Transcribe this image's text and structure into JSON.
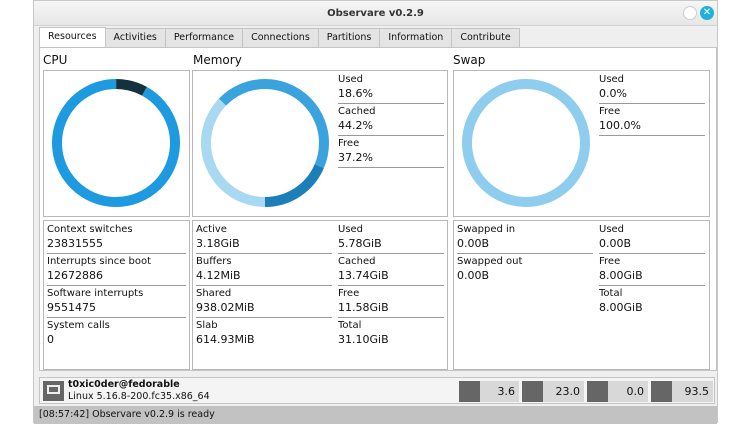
{
  "window": {
    "title": "Observare v0.2.9"
  },
  "tabs": [
    "Resources",
    "Activities",
    "Performance",
    "Connections",
    "Partitions",
    "Information",
    "Contribute"
  ],
  "cpu": {
    "title": "CPU",
    "usage_percent": 8,
    "stats": [
      {
        "label": "Context switches",
        "value": "23831555"
      },
      {
        "label": "Interrupts since boot",
        "value": "12672886"
      },
      {
        "label": "Software interrupts",
        "value": "9551475"
      },
      {
        "label": "System calls",
        "value": "0"
      }
    ]
  },
  "memory": {
    "title": "Memory",
    "legend": [
      {
        "label": "Used",
        "value": "18.6%"
      },
      {
        "label": "Cached",
        "value": "44.2%"
      },
      {
        "label": "Free",
        "value": "37.2%"
      }
    ],
    "left": [
      {
        "label": "Active",
        "value": "3.18GiB"
      },
      {
        "label": "Buffers",
        "value": "4.12MiB"
      },
      {
        "label": "Shared",
        "value": "938.02MiB"
      },
      {
        "label": "Slab",
        "value": "614.93MiB"
      }
    ],
    "right": [
      {
        "label": "Used",
        "value": "5.78GiB"
      },
      {
        "label": "Cached",
        "value": "13.74GiB"
      },
      {
        "label": "Free",
        "value": "11.58GiB"
      },
      {
        "label": "Total",
        "value": "31.10GiB"
      }
    ]
  },
  "swap": {
    "title": "Swap",
    "legend": [
      {
        "label": "Used",
        "value": "0.0%"
      },
      {
        "label": "Free",
        "value": "100.0%"
      }
    ],
    "left": [
      {
        "label": "Swapped in",
        "value": "0.00B"
      },
      {
        "label": "Swapped out",
        "value": "0.00B"
      }
    ],
    "right": [
      {
        "label": "Used",
        "value": "0.00B"
      },
      {
        "label": "Free",
        "value": "8.00GiB"
      },
      {
        "label": "Total",
        "value": "8.00GiB"
      }
    ]
  },
  "footer": {
    "user": "t0xic0der@fedorable",
    "kernel": "Linux 5.16.8-200.fc35.x86_64",
    "stats": [
      {
        "icon": "cpu-icon",
        "value": "3.6"
      },
      {
        "icon": "memory-icon",
        "value": "23.0"
      },
      {
        "icon": "swap-icon",
        "value": "0.0"
      },
      {
        "icon": "disk-icon",
        "value": "93.5"
      }
    ]
  },
  "status": "[08:57:42] Observare v0.2.9 is ready",
  "colors": {
    "dark": "#12323f",
    "used": "#1d7fb8",
    "cached": "#3aa3dd",
    "free": "#a8d8f2",
    "cpu": "#1e9ae0"
  }
}
